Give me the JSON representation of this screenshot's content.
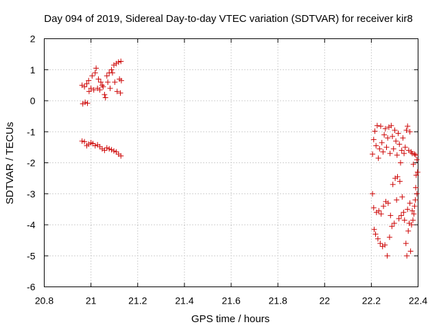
{
  "chart_data": {
    "type": "scatter",
    "title": "Day 094 of 2019, Sidereal Day-to-day VTEC variation (SDTVAR) for receiver kir8",
    "xlabel": "GPS time / hours",
    "ylabel": "SDTVAR / TECUs",
    "xlim": [
      20.8,
      22.4
    ],
    "ylim": [
      -6,
      2
    ],
    "x_ticks": [
      20.8,
      21.0,
      21.2,
      21.4,
      21.6,
      21.8,
      22.0,
      22.2,
      22.4
    ],
    "x_tick_labels": [
      "20.8",
      "21",
      "21.2",
      "21.4",
      "21.6",
      "21.8",
      "22",
      "22.2",
      "22.4"
    ],
    "y_ticks": [
      -6,
      -5,
      -4,
      -3,
      -2,
      -1,
      0,
      1,
      2
    ],
    "y_tick_labels": [
      "-6",
      "-5",
      "-4",
      "-3",
      "-2",
      "-1",
      "0",
      "1",
      "2"
    ],
    "grid": true,
    "marker": "+",
    "color": "#cc0000",
    "series": [
      {
        "name": "SDTVAR",
        "points": [
          [
            20.965,
            -0.1
          ],
          [
            20.975,
            -0.05
          ],
          [
            20.985,
            -0.08
          ],
          [
            20.962,
            0.5
          ],
          [
            20.972,
            0.45
          ],
          [
            20.982,
            0.55
          ],
          [
            20.99,
            0.65
          ],
          [
            20.992,
            0.3
          ],
          [
            21.0,
            0.4
          ],
          [
            21.005,
            0.8
          ],
          [
            21.012,
            0.35
          ],
          [
            21.018,
            0.9
          ],
          [
            21.022,
            1.05
          ],
          [
            21.028,
            0.4
          ],
          [
            21.032,
            0.7
          ],
          [
            21.038,
            0.35
          ],
          [
            21.042,
            0.6
          ],
          [
            21.048,
            0.5
          ],
          [
            21.052,
            0.45
          ],
          [
            21.058,
            0.2
          ],
          [
            21.062,
            0.1
          ],
          [
            21.068,
            0.8
          ],
          [
            21.072,
            0.6
          ],
          [
            21.078,
            0.9
          ],
          [
            21.082,
            0.4
          ],
          [
            21.088,
            1.0
          ],
          [
            21.092,
            0.9
          ],
          [
            21.098,
            1.15
          ],
          [
            21.102,
            0.6
          ],
          [
            21.108,
            1.2
          ],
          [
            21.112,
            0.3
          ],
          [
            21.118,
            1.25
          ],
          [
            21.122,
            0.7
          ],
          [
            21.126,
            0.25
          ],
          [
            21.128,
            1.27
          ],
          [
            21.13,
            0.65
          ],
          [
            20.962,
            -1.3
          ],
          [
            20.972,
            -1.32
          ],
          [
            20.982,
            -1.45
          ],
          [
            20.99,
            -1.4
          ],
          [
            21.0,
            -1.35
          ],
          [
            21.008,
            -1.38
          ],
          [
            21.018,
            -1.45
          ],
          [
            21.028,
            -1.42
          ],
          [
            21.038,
            -1.48
          ],
          [
            21.048,
            -1.55
          ],
          [
            21.058,
            -1.6
          ],
          [
            21.068,
            -1.52
          ],
          [
            21.078,
            -1.55
          ],
          [
            21.088,
            -1.58
          ],
          [
            21.098,
            -1.62
          ],
          [
            21.108,
            -1.65
          ],
          [
            21.118,
            -1.72
          ],
          [
            21.128,
            -1.78
          ],
          [
            22.205,
            -1.72
          ],
          [
            22.21,
            -1.25
          ],
          [
            22.215,
            -0.98
          ],
          [
            22.22,
            -1.45
          ],
          [
            22.225,
            -0.8
          ],
          [
            22.23,
            -1.85
          ],
          [
            22.235,
            -1.55
          ],
          [
            22.24,
            -0.82
          ],
          [
            22.245,
            -1.35
          ],
          [
            22.25,
            -1.65
          ],
          [
            22.255,
            -1.1
          ],
          [
            22.26,
            -0.9
          ],
          [
            22.265,
            -1.5
          ],
          [
            22.27,
            -1.2
          ],
          [
            22.275,
            -0.85
          ],
          [
            22.28,
            -1.7
          ],
          [
            22.285,
            -0.8
          ],
          [
            22.29,
            -1.15
          ],
          [
            22.295,
            -1.55
          ],
          [
            22.3,
            -0.95
          ],
          [
            22.305,
            -1.3
          ],
          [
            22.31,
            -1.75
          ],
          [
            22.315,
            -1.05
          ],
          [
            22.32,
            -1.4
          ],
          [
            22.325,
            -2.0
          ],
          [
            22.33,
            -1.6
          ],
          [
            22.335,
            -1.2
          ],
          [
            22.34,
            -1.7
          ],
          [
            22.345,
            -1.5
          ],
          [
            22.35,
            -0.95
          ],
          [
            22.355,
            -0.82
          ],
          [
            22.36,
            -1.6
          ],
          [
            22.365,
            -1.0
          ],
          [
            22.37,
            -1.65
          ],
          [
            22.375,
            -1.7
          ],
          [
            22.38,
            -2.05
          ],
          [
            22.385,
            -1.72
          ],
          [
            22.39,
            -1.75
          ],
          [
            22.395,
            -1.9
          ],
          [
            22.205,
            -3.0
          ],
          [
            22.21,
            -3.45
          ],
          [
            22.212,
            -4.15
          ],
          [
            22.218,
            -4.3
          ],
          [
            22.222,
            -3.6
          ],
          [
            22.228,
            -4.45
          ],
          [
            22.232,
            -3.55
          ],
          [
            22.238,
            -4.6
          ],
          [
            22.242,
            -3.65
          ],
          [
            22.248,
            -4.7
          ],
          [
            22.252,
            -3.4
          ],
          [
            22.258,
            -4.65
          ],
          [
            22.262,
            -3.25
          ],
          [
            22.268,
            -5.0
          ],
          [
            22.272,
            -3.3
          ],
          [
            22.278,
            -4.4
          ],
          [
            22.282,
            -3.7
          ],
          [
            22.288,
            -4.05
          ],
          [
            22.292,
            -2.7
          ],
          [
            22.298,
            -3.95
          ],
          [
            22.302,
            -2.5
          ],
          [
            22.308,
            -3.2
          ],
          [
            22.312,
            -2.45
          ],
          [
            22.318,
            -3.8
          ],
          [
            22.322,
            -2.6
          ],
          [
            22.328,
            -3.7
          ],
          [
            22.332,
            -3.1
          ],
          [
            22.338,
            -3.6
          ],
          [
            22.342,
            -3.85
          ],
          [
            22.348,
            -4.6
          ],
          [
            22.352,
            -5.0
          ],
          [
            22.355,
            -3.5
          ],
          [
            22.358,
            -4.2
          ],
          [
            22.362,
            -3.95
          ],
          [
            22.365,
            -3.3
          ],
          [
            22.368,
            -4.85
          ],
          [
            22.372,
            -4.0
          ],
          [
            22.375,
            -3.55
          ],
          [
            22.378,
            -3.85
          ],
          [
            22.382,
            -3.65
          ],
          [
            22.385,
            -3.4
          ],
          [
            22.388,
            -3.2
          ],
          [
            22.39,
            -2.8
          ],
          [
            22.392,
            -2.4
          ],
          [
            22.395,
            -3.0
          ],
          [
            22.398,
            -2.3
          ]
        ]
      }
    ]
  }
}
